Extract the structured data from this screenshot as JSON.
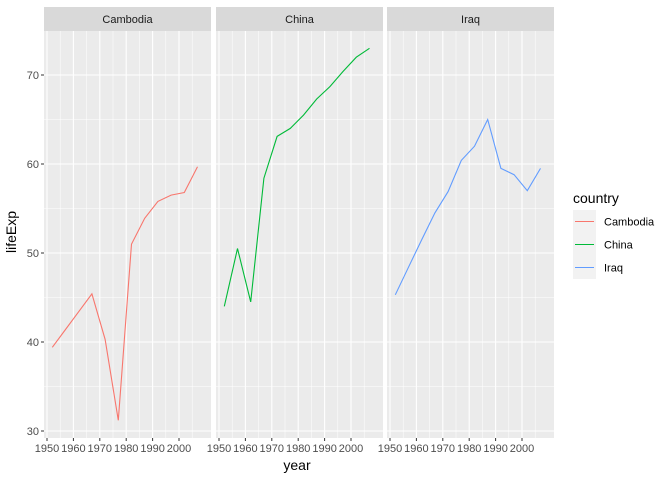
{
  "chart_data": {
    "type": "line",
    "facet_by": "country",
    "xlabel": "year",
    "ylabel": "lifeExp",
    "xlim": [
      1952,
      2007
    ],
    "ylim": [
      30,
      75
    ],
    "x_ticks": [
      1950,
      1960,
      1970,
      1980,
      1990,
      2000
    ],
    "y_ticks": [
      30,
      40,
      50,
      60,
      70
    ],
    "legend": {
      "title": "country",
      "position": "right"
    },
    "grid": true,
    "x": [
      1952,
      1957,
      1962,
      1967,
      1972,
      1977,
      1982,
      1987,
      1992,
      1997,
      2002,
      2007
    ],
    "series": [
      {
        "name": "Cambodia",
        "color": "#F8766D",
        "values": [
          39.4,
          41.4,
          43.4,
          45.4,
          40.3,
          31.2,
          51.0,
          53.9,
          55.8,
          56.5,
          56.8,
          59.7
        ]
      },
      {
        "name": "China",
        "color": "#00BA38",
        "values": [
          44.0,
          50.5,
          44.5,
          58.4,
          63.1,
          64.0,
          65.5,
          67.3,
          68.7,
          70.4,
          72.0,
          73.0
        ]
      },
      {
        "name": "Iraq",
        "color": "#619CFF",
        "values": [
          45.3,
          48.4,
          51.5,
          54.5,
          56.9,
          60.4,
          62.0,
          65.0,
          59.5,
          58.8,
          57.0,
          59.5
        ]
      }
    ]
  }
}
